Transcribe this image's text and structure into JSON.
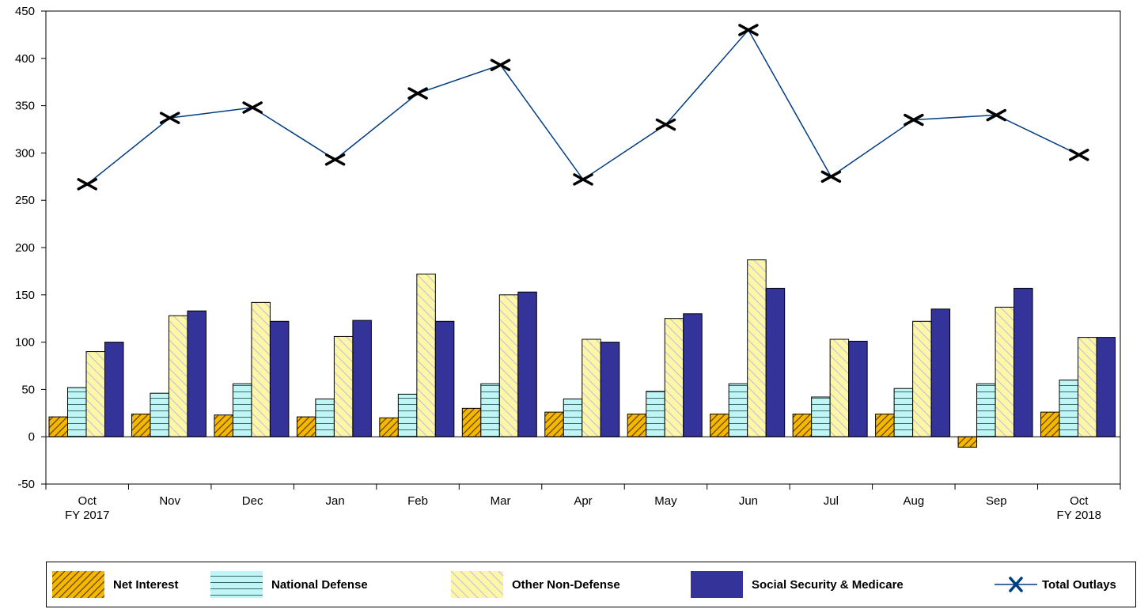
{
  "chart_data": {
    "type": "bar",
    "categories": [
      "Oct",
      "Nov",
      "Dec",
      "Jan",
      "Feb",
      "Mar",
      "Apr",
      "May",
      "Jun",
      "Jul",
      "Aug",
      "Sep",
      "Oct"
    ],
    "category_sublabels": [
      "FY 2017",
      "",
      "",
      "",
      "",
      "",
      "",
      "",
      "",
      "",
      "",
      "",
      "FY 2018"
    ],
    "ylim": [
      -50,
      450
    ],
    "yticks": [
      -50,
      0,
      50,
      100,
      150,
      200,
      250,
      300,
      350,
      400,
      450
    ],
    "ytick_labels": [
      "-50",
      "0",
      "50",
      "100",
      "150",
      "200",
      "250",
      "300",
      "350",
      "400",
      "450"
    ],
    "grid": false,
    "legend_position": "bottom",
    "series": [
      {
        "name": "Net Interest",
        "kind": "bar",
        "pattern": "diagonal-hatch",
        "color": "#F5B800",
        "values": [
          21,
          24,
          23,
          21,
          20,
          30,
          26,
          24,
          24,
          24,
          24,
          -11,
          26
        ]
      },
      {
        "name": "National Defense",
        "kind": "bar",
        "pattern": "horizontal-lines",
        "color": "#BFF5F5",
        "values": [
          52,
          46,
          56,
          40,
          45,
          56,
          40,
          48,
          56,
          42,
          51,
          56,
          60
        ]
      },
      {
        "name": "Other Non-Defense",
        "kind": "bar",
        "pattern": "light-diagonal",
        "color": "#FBF7A4",
        "values": [
          90,
          128,
          142,
          106,
          172,
          150,
          103,
          125,
          187,
          103,
          122,
          137,
          105
        ]
      },
      {
        "name": "Social Security & Medicare",
        "kind": "bar",
        "pattern": "solid",
        "color": "#333399",
        "values": [
          100,
          133,
          122,
          123,
          122,
          153,
          100,
          130,
          157,
          101,
          135,
          157,
          105
        ]
      },
      {
        "name": "Total Outlays",
        "kind": "line",
        "marker": "x",
        "color": "#003C80",
        "values": [
          267,
          337,
          348,
          293,
          363,
          393,
          272,
          330,
          430,
          275,
          335,
          340,
          298
        ]
      }
    ]
  }
}
